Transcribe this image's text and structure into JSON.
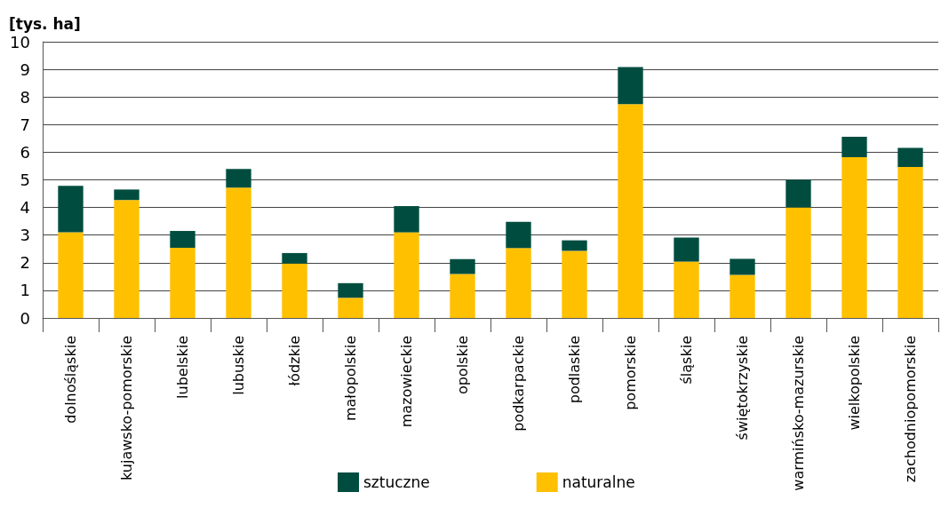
{
  "chart_data": {
    "type": "bar",
    "stacked": true,
    "ylabel": "[tys. ha]",
    "categories": [
      "dolnośląskie",
      "kujawsko-pomorskie",
      "lubelskie",
      "lubuskie",
      "łódzkie",
      "małopolskie",
      "mazowieckie",
      "opolskie",
      "podkarpackie",
      "podlaskie",
      "pomorskie",
      "śląskie",
      "świętokrzyskie",
      "warmińsko-mazurskie",
      "wielkopolskie",
      "zachodniopomorskie"
    ],
    "series": [
      {
        "name": "naturalne",
        "color": "#ffc000",
        "values": [
          3.1,
          4.27,
          2.54,
          4.72,
          1.97,
          0.73,
          3.1,
          1.59,
          2.53,
          2.43,
          7.74,
          2.04,
          1.56,
          4.0,
          5.82,
          5.47
        ]
      },
      {
        "name": "sztuczne",
        "color": "#004d40",
        "values": [
          1.68,
          0.38,
          0.61,
          0.67,
          0.38,
          0.53,
          0.95,
          0.54,
          0.95,
          0.38,
          1.34,
          0.87,
          0.58,
          1.0,
          0.74,
          0.69
        ]
      }
    ],
    "ylim": [
      0,
      10
    ],
    "yticks": [
      0,
      1,
      2,
      3,
      4,
      5,
      6,
      7,
      8,
      9,
      10
    ],
    "grid": "y",
    "legend": "bottom"
  }
}
